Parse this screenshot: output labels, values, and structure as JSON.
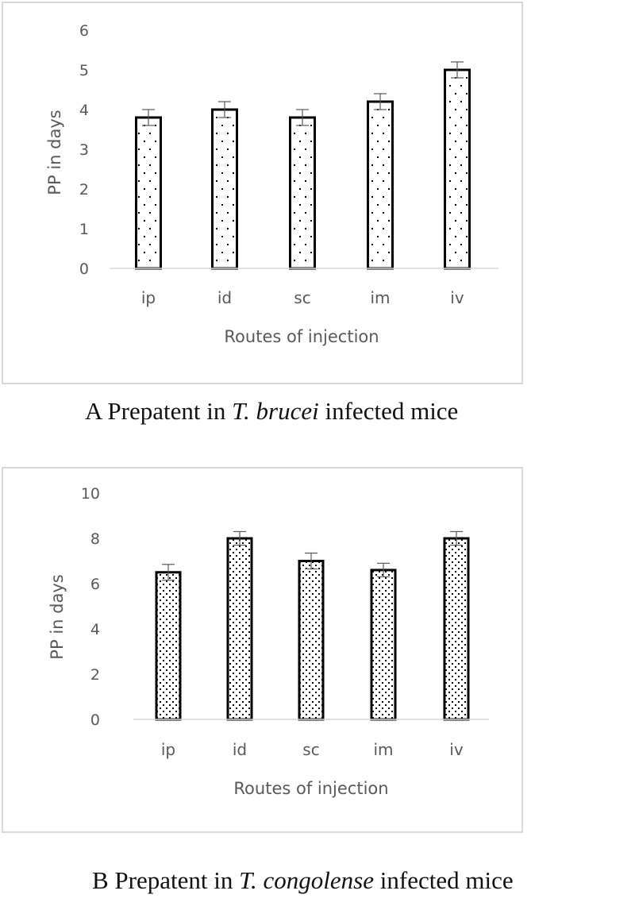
{
  "chart_data": [
    {
      "type": "bar",
      "panel": "A",
      "title": "A Prepatent in T. brucei infected mice",
      "xlabel": "Routes of injection",
      "ylabel": "PP in days",
      "categories": [
        "ip",
        "id",
        "sc",
        "im",
        "iv"
      ],
      "values": [
        3.8,
        4.0,
        3.8,
        4.2,
        5.0
      ],
      "error": [
        0.2,
        0.2,
        0.2,
        0.2,
        0.2
      ],
      "ylim": [
        0,
        6
      ],
      "yticks": [
        0,
        1,
        2,
        3,
        4,
        5,
        6
      ],
      "grid": false,
      "legend": null,
      "bar_fill": "dotted pattern",
      "bar_outline": "#000000"
    },
    {
      "type": "bar",
      "panel": "B",
      "title": "B Prepatent in T. congolense infected mice",
      "xlabel": "Routes of injection",
      "ylabel": "PP in days",
      "categories": [
        "ip",
        "id",
        "sc",
        "im",
        "iv"
      ],
      "values": [
        6.5,
        8.0,
        7.0,
        6.6,
        8.0
      ],
      "error": [
        0.35,
        0.3,
        0.35,
        0.3,
        0.3
      ],
      "ylim": [
        0,
        10
      ],
      "yticks": [
        0,
        2,
        4,
        6,
        8,
        10
      ],
      "grid": false,
      "legend": null,
      "bar_fill": "dense dotted pattern",
      "bar_outline": "#000000"
    }
  ],
  "captions": {
    "a": {
      "prefix": "A Prepatent in ",
      "species": "T. brucei",
      "suffix": " infected mice"
    },
    "b": {
      "prefix": "B Prepatent in ",
      "species": "T. congolense",
      "suffix": " infected mice"
    }
  },
  "colors": {
    "frame": "#d9d9d9",
    "axis_text": "#595959",
    "bar_outline": "#000000",
    "error_bar": "#595959",
    "baseline": "#d9d9d9"
  }
}
